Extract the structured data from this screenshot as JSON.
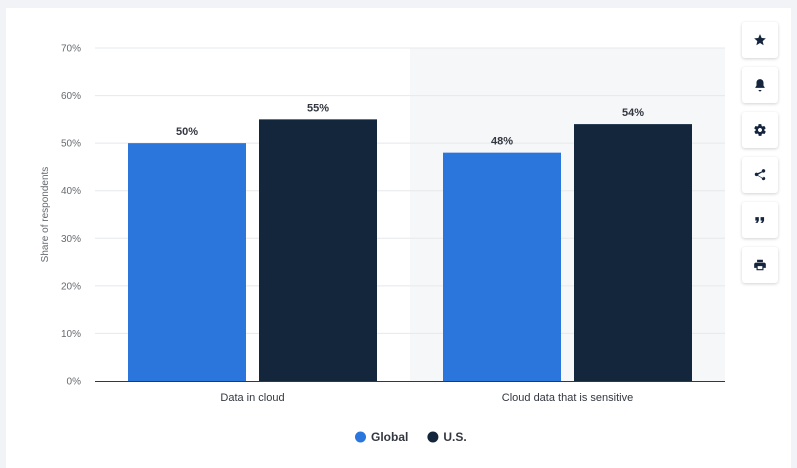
{
  "chart_data": {
    "type": "bar",
    "categories": [
      "Data in cloud",
      "Cloud data that is sensitive"
    ],
    "series": [
      {
        "name": "Global",
        "values": [
          50,
          48
        ],
        "color": "#2a76dd"
      },
      {
        "name": "U.S.",
        "values": [
          55,
          54
        ],
        "color": "#13263c"
      }
    ],
    "data_labels": [
      [
        "50%",
        "48%"
      ],
      [
        "55%",
        "54%"
      ]
    ],
    "ylabel": "Share of respondents",
    "xlabel": "",
    "ylim": [
      0,
      70
    ],
    "yticks": [
      "0%",
      "10%",
      "20%",
      "30%",
      "40%",
      "50%",
      "60%",
      "70%"
    ],
    "ytick_values": [
      0,
      10,
      20,
      30,
      40,
      50,
      60,
      70
    ],
    "grid": true,
    "legend": "bottom-center",
    "highlighted_category": "Cloud data that is sensitive"
  },
  "toolbar": {
    "items": [
      {
        "name": "star",
        "icon": "star-icon"
      },
      {
        "name": "notification",
        "icon": "bell-icon"
      },
      {
        "name": "settings",
        "icon": "gear-icon"
      },
      {
        "name": "share",
        "icon": "share-icon"
      },
      {
        "name": "cite",
        "icon": "quote-icon"
      },
      {
        "name": "print",
        "icon": "print-icon"
      }
    ]
  },
  "colors": {
    "grid": "#e6e8eb",
    "axis": "#333740",
    "highlight_band": "#f6f7f9"
  }
}
